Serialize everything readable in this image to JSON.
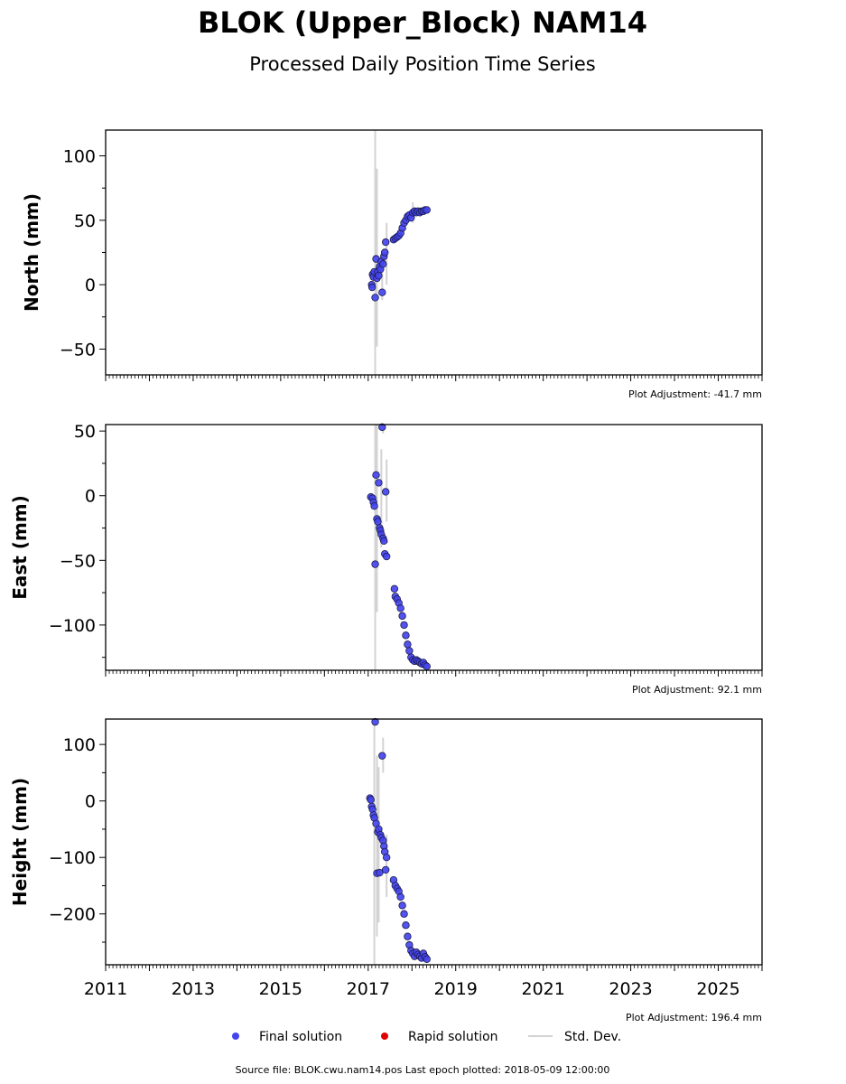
{
  "title": "BLOK (Upper_Block) NAM14",
  "subtitle": "Processed Daily Position Time Series",
  "source_text": "Source file: BLOK.cwu.nam14.pos  Last epoch plotted: 2018-05-09 12:00:00",
  "legend": [
    {
      "label": "Final solution",
      "color": "#4444ee",
      "marker": "dot"
    },
    {
      "label": "Rapid solution",
      "color": "#dd0000",
      "marker": "dot"
    },
    {
      "label": "Std. Dev.",
      "color": "#d3d3d3",
      "marker": "line"
    }
  ],
  "colors": {
    "final": "#4444ee",
    "final_edge": "#1a1a4a",
    "stddev": "#d3d3d3",
    "axis": "#000000"
  },
  "chart_data": [
    {
      "type": "scatter",
      "ylabel": "North (mm)",
      "adjustment": "Plot Adjustment: -41.7 mm",
      "xlim": [
        2011,
        2026
      ],
      "ylim": [
        -70,
        120
      ],
      "yticks": [
        100,
        50,
        0,
        -50
      ],
      "ytick_labels": [
        "100",
        "50",
        "0",
        "−50"
      ],
      "points": [
        [
          2017.08,
          0
        ],
        [
          2017.09,
          -2
        ],
        [
          2017.1,
          8
        ],
        [
          2017.12,
          6
        ],
        [
          2017.14,
          10
        ],
        [
          2017.16,
          -10
        ],
        [
          2017.18,
          20
        ],
        [
          2017.2,
          5
        ],
        [
          2017.22,
          10
        ],
        [
          2017.24,
          7
        ],
        [
          2017.26,
          14
        ],
        [
          2017.28,
          12
        ],
        [
          2017.3,
          18
        ],
        [
          2017.32,
          -6
        ],
        [
          2017.34,
          16
        ],
        [
          2017.36,
          22
        ],
        [
          2017.38,
          25
        ],
        [
          2017.4,
          33
        ],
        [
          2017.58,
          35
        ],
        [
          2017.62,
          36
        ],
        [
          2017.66,
          37
        ],
        [
          2017.7,
          38
        ],
        [
          2017.74,
          40
        ],
        [
          2017.78,
          44
        ],
        [
          2017.82,
          48
        ],
        [
          2017.86,
          50
        ],
        [
          2017.9,
          53
        ],
        [
          2017.94,
          54
        ],
        [
          2017.98,
          52
        ],
        [
          2018.02,
          56
        ],
        [
          2018.06,
          57
        ],
        [
          2018.1,
          56
        ],
        [
          2018.14,
          57
        ],
        [
          2018.18,
          56
        ],
        [
          2018.22,
          57
        ],
        [
          2018.26,
          57
        ],
        [
          2018.3,
          58
        ],
        [
          2018.34,
          58
        ]
      ],
      "errorbars": [
        [
          2017.16,
          -70,
          120
        ],
        [
          2017.2,
          -48,
          90
        ],
        [
          2017.32,
          -12,
          18
        ],
        [
          2017.42,
          0,
          48
        ],
        [
          2018.02,
          48,
          64
        ]
      ]
    },
    {
      "type": "scatter",
      "ylabel": "East (mm)",
      "adjustment": "Plot Adjustment: 92.1 mm",
      "xlim": [
        2011,
        2026
      ],
      "ylim": [
        -135,
        55
      ],
      "yticks": [
        50,
        0,
        -50,
        -100
      ],
      "ytick_labels": [
        "50",
        "0",
        "−50",
        "−100"
      ],
      "points": [
        [
          2017.06,
          -1
        ],
        [
          2017.1,
          -2
        ],
        [
          2017.12,
          -5
        ],
        [
          2017.14,
          -8
        ],
        [
          2017.16,
          -53
        ],
        [
          2017.18,
          16
        ],
        [
          2017.2,
          -18
        ],
        [
          2017.22,
          -20
        ],
        [
          2017.24,
          10
        ],
        [
          2017.26,
          -25
        ],
        [
          2017.28,
          -27
        ],
        [
          2017.3,
          -30
        ],
        [
          2017.32,
          53
        ],
        [
          2017.34,
          -33
        ],
        [
          2017.36,
          -35
        ],
        [
          2017.38,
          -45
        ],
        [
          2017.4,
          3
        ],
        [
          2017.42,
          -47
        ],
        [
          2017.6,
          -72
        ],
        [
          2017.62,
          -78
        ],
        [
          2017.66,
          -80
        ],
        [
          2017.7,
          -83
        ],
        [
          2017.74,
          -87
        ],
        [
          2017.78,
          -93
        ],
        [
          2017.82,
          -100
        ],
        [
          2017.86,
          -108
        ],
        [
          2017.9,
          -115
        ],
        [
          2017.94,
          -120
        ],
        [
          2017.98,
          -125
        ],
        [
          2018.02,
          -127
        ],
        [
          2018.06,
          -128
        ],
        [
          2018.1,
          -127
        ],
        [
          2018.14,
          -128
        ],
        [
          2018.18,
          -129
        ],
        [
          2018.22,
          -130
        ],
        [
          2018.26,
          -129
        ],
        [
          2018.3,
          -131
        ],
        [
          2018.34,
          -132
        ]
      ],
      "errorbars": [
        [
          2017.16,
          -135,
          55
        ],
        [
          2017.2,
          -90,
          55
        ],
        [
          2017.3,
          -40,
          36
        ],
        [
          2017.42,
          -20,
          28
        ],
        [
          2017.34,
          48,
          55
        ]
      ]
    },
    {
      "type": "scatter",
      "ylabel": "Height (mm)",
      "adjustment": "Plot Adjustment: 196.4 mm",
      "xlim": [
        2011,
        2026
      ],
      "ylim": [
        -290,
        145
      ],
      "yticks": [
        100,
        0,
        -100,
        -200
      ],
      "ytick_labels": [
        "100",
        "0",
        "−100",
        "−200"
      ],
      "xticks": [
        2011,
        2013,
        2015,
        2017,
        2019,
        2021,
        2023,
        2025
      ],
      "xtick_labels": [
        "2011",
        "2013",
        "2015",
        "2017",
        "2019",
        "2021",
        "2023",
        "2025"
      ],
      "points": [
        [
          2017.04,
          5
        ],
        [
          2017.06,
          2
        ],
        [
          2017.08,
          -10
        ],
        [
          2017.1,
          -15
        ],
        [
          2017.12,
          -25
        ],
        [
          2017.14,
          -30
        ],
        [
          2017.16,
          140
        ],
        [
          2017.18,
          -40
        ],
        [
          2017.2,
          -128
        ],
        [
          2017.22,
          -55
        ],
        [
          2017.24,
          -50
        ],
        [
          2017.26,
          -127
        ],
        [
          2017.28,
          -60
        ],
        [
          2017.3,
          -65
        ],
        [
          2017.32,
          80
        ],
        [
          2017.34,
          -70
        ],
        [
          2017.36,
          -80
        ],
        [
          2017.38,
          -90
        ],
        [
          2017.4,
          -122
        ],
        [
          2017.42,
          -100
        ],
        [
          2017.58,
          -140
        ],
        [
          2017.62,
          -150
        ],
        [
          2017.66,
          -155
        ],
        [
          2017.7,
          -160
        ],
        [
          2017.74,
          -170
        ],
        [
          2017.78,
          -185
        ],
        [
          2017.82,
          -200
        ],
        [
          2017.86,
          -220
        ],
        [
          2017.9,
          -240
        ],
        [
          2017.94,
          -255
        ],
        [
          2017.98,
          -265
        ],
        [
          2018.02,
          -270
        ],
        [
          2018.06,
          -275
        ],
        [
          2018.1,
          -268
        ],
        [
          2018.14,
          -272
        ],
        [
          2018.18,
          -275
        ],
        [
          2018.22,
          -278
        ],
        [
          2018.26,
          -270
        ],
        [
          2018.3,
          -276
        ],
        [
          2018.34,
          -280
        ]
      ],
      "errorbars": [
        [
          2017.14,
          -290,
          145
        ],
        [
          2017.2,
          -240,
          80
        ],
        [
          2017.24,
          -215,
          60
        ],
        [
          2017.34,
          50,
          112
        ],
        [
          2017.42,
          -170,
          -60
        ]
      ]
    }
  ]
}
